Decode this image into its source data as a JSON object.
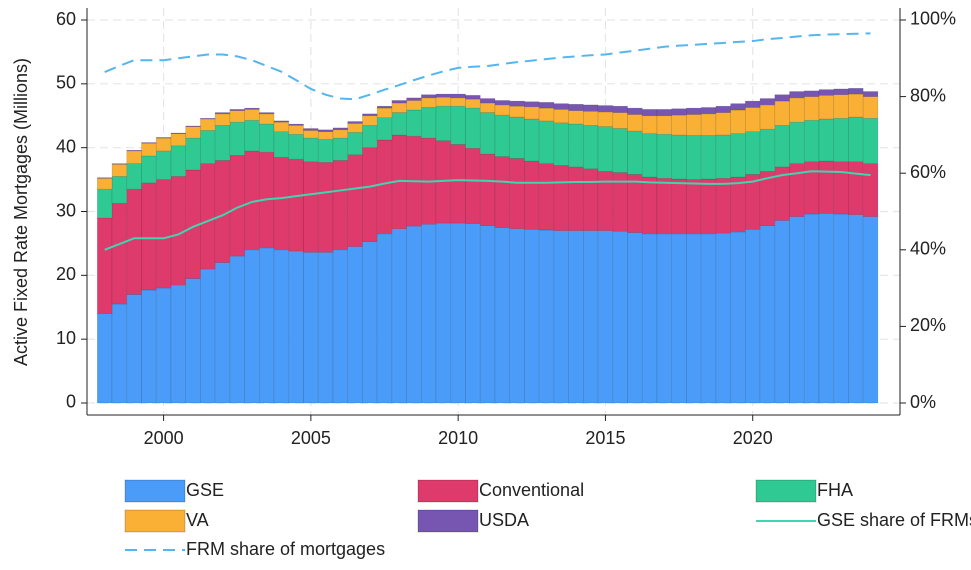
{
  "chart_data": {
    "type": "bar",
    "stacked": true,
    "ylabel": "Active Fixed Rate Mortgages (Millions)",
    "x": [
      1998,
      1998.5,
      1999,
      1999.5,
      2000,
      2000.5,
      2001,
      2001.5,
      2002,
      2002.5,
      2003,
      2003.5,
      2004,
      2004.5,
      2005,
      2005.5,
      2006,
      2006.5,
      2007,
      2007.5,
      2008,
      2008.5,
      2009,
      2009.5,
      2010,
      2010.5,
      2011,
      2011.5,
      2012,
      2012.5,
      2013,
      2013.5,
      2014,
      2014.5,
      2015,
      2015.5,
      2016,
      2016.5,
      2017,
      2017.5,
      2018,
      2018.5,
      2019,
      2019.5,
      2020,
      2020.5,
      2021,
      2021.5,
      2022,
      2022.5,
      2023,
      2023.5,
      2024
    ],
    "xlim": [
      1997.4,
      2025
    ],
    "xticks": [
      2000,
      2005,
      2010,
      2015,
      2020
    ],
    "ylim": [
      -1.88,
      61.88
    ],
    "yticks": [
      0,
      10,
      20,
      30,
      40,
      50,
      60
    ],
    "y2lim": [
      -3.13,
      103.13
    ],
    "y2ticks": [
      {
        "value": 0,
        "label": "0%"
      },
      {
        "value": 20,
        "label": "20%"
      },
      {
        "value": 40,
        "label": "40%"
      },
      {
        "value": 60,
        "label": "60%"
      },
      {
        "value": 80,
        "label": "80%"
      },
      {
        "value": 100,
        "label": "100%"
      }
    ],
    "grid": true,
    "series": [
      {
        "name": "GSE",
        "color": "#4a9cf8",
        "values": [
          14,
          15.5,
          17,
          17.7,
          18,
          18.5,
          19.5,
          21,
          22,
          23,
          24,
          24.3,
          24,
          23.8,
          23.6,
          23.6,
          24,
          24.5,
          25.3,
          26.5,
          27.3,
          27.7,
          28,
          28.2,
          28.2,
          28.1,
          27.8,
          27.5,
          27.3,
          27.2,
          27.1,
          27,
          27,
          27,
          27,
          26.9,
          26.7,
          26.5,
          26.5,
          26.5,
          26.5,
          26.5,
          26.6,
          26.8,
          27.2,
          27.8,
          28.6,
          29.2,
          29.6,
          29.7,
          29.6,
          29.5,
          29.2
        ]
      },
      {
        "name": "Conventional",
        "color": "#de3a6b",
        "values": [
          15,
          15.8,
          16.5,
          16.8,
          17,
          17,
          17,
          16.5,
          16,
          15.8,
          15.5,
          15,
          14.5,
          14.4,
          14.2,
          14.1,
          14,
          14.4,
          14.7,
          14.7,
          14.7,
          14.1,
          13.5,
          12.9,
          12.3,
          11.8,
          11.2,
          11.1,
          11,
          10.7,
          10.4,
          10.2,
          10,
          9.7,
          9.3,
          9.2,
          9.1,
          8.9,
          8.7,
          8.6,
          8.5,
          8.6,
          8.6,
          8.6,
          8.6,
          8.5,
          8.4,
          8.3,
          8.2,
          8.2,
          8.2,
          8.3,
          8.3
        ]
      },
      {
        "name": "FHA",
        "color": "#2fc993",
        "values": [
          4.5,
          4.2,
          4,
          4.2,
          4.5,
          4.8,
          5,
          5.2,
          5.5,
          5.2,
          4.8,
          4.4,
          4,
          3.9,
          3.7,
          3.6,
          3.5,
          3.5,
          3.5,
          3.5,
          3.5,
          4.1,
          4.8,
          5.4,
          6,
          6.3,
          6.5,
          6.5,
          6.5,
          6.6,
          6.7,
          6.7,
          6.7,
          6.8,
          7,
          6.9,
          6.8,
          6.8,
          6.9,
          6.9,
          6.9,
          6.8,
          6.8,
          6.8,
          6.7,
          6.6,
          6.5,
          6.5,
          6.5,
          6.6,
          6.8,
          7,
          7.1
        ]
      },
      {
        "name": "VA",
        "color": "#f9b035",
        "values": [
          1.7,
          1.9,
          2,
          2,
          2,
          1.9,
          1.8,
          1.8,
          1.8,
          1.8,
          1.7,
          1.6,
          1.5,
          1.4,
          1.2,
          1.2,
          1.3,
          1.4,
          1.5,
          1.5,
          1.5,
          1.5,
          1.5,
          1.4,
          1.3,
          1.4,
          1.5,
          1.6,
          1.7,
          1.9,
          2,
          2.1,
          2.1,
          2.2,
          2.3,
          2.5,
          2.6,
          2.8,
          2.9,
          3.1,
          3.3,
          3.4,
          3.5,
          3.7,
          3.8,
          3.8,
          3.8,
          3.8,
          3.7,
          3.7,
          3.7,
          3.6,
          3.4
        ]
      },
      {
        "name": "USDA",
        "color": "#7756b2",
        "values": [
          0.1,
          0.1,
          0.1,
          0.1,
          0.1,
          0.1,
          0.1,
          0.1,
          0.2,
          0.2,
          0.2,
          0.2,
          0.2,
          0.2,
          0.3,
          0.3,
          0.3,
          0.3,
          0.3,
          0.3,
          0.4,
          0.4,
          0.5,
          0.5,
          0.6,
          0.6,
          0.7,
          0.7,
          0.8,
          0.8,
          0.9,
          0.9,
          1,
          1,
          1,
          1,
          1,
          1,
          1,
          1,
          1,
          1,
          1,
          1,
          1,
          1,
          1,
          1,
          0.9,
          0.9,
          0.9,
          0.9,
          0.8
        ]
      },
      {
        "name": "GSE share of FRMs",
        "color": "#3dd6b0",
        "type": "line",
        "axis": "y2",
        "values": [
          40,
          41.5,
          43,
          43,
          43,
          44,
          46,
          47.5,
          49,
          51,
          52.5,
          53.2,
          53.5,
          54,
          54.5,
          55,
          55.5,
          56,
          56.5,
          57.3,
          58,
          57.9,
          57.8,
          58,
          58.2,
          58.1,
          58,
          57.8,
          57.5,
          57.5,
          57.5,
          57.6,
          57.7,
          57.7,
          57.8,
          57.8,
          57.8,
          57.6,
          57.5,
          57.4,
          57.3,
          57.2,
          57.2,
          57.4,
          57.8,
          58.7,
          59.5,
          60,
          60.5,
          60.4,
          60.3,
          59.9,
          59.5
        ]
      },
      {
        "name": "FRM share of mortgages",
        "color": "#55b6ef",
        "type": "line",
        "dashed": true,
        "axis": "y2",
        "values": [
          86.4,
          88,
          89.5,
          89.5,
          89.5,
          90,
          90.5,
          91,
          91,
          90.5,
          89.5,
          88,
          86.5,
          84.3,
          82,
          80.5,
          79.5,
          79.3,
          80.5,
          81.8,
          83,
          84.3,
          85.5,
          86.6,
          87.5,
          87.8,
          88,
          88.5,
          89,
          89.4,
          89.8,
          90.2,
          90.5,
          90.8,
          91,
          91.5,
          92,
          92.5,
          93,
          93.3,
          93.5,
          93.8,
          94,
          94.3,
          94.5,
          95,
          95.3,
          95.7,
          96,
          96.2,
          96.3,
          96.4,
          96.5
        ]
      }
    ]
  }
}
